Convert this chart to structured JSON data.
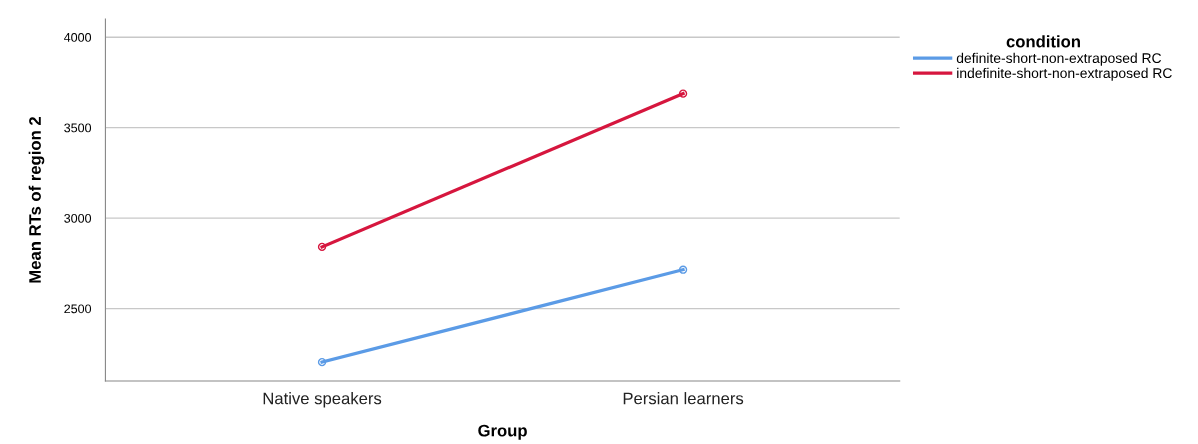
{
  "chart_data": {
    "type": "line",
    "xlabel": "Group",
    "ylabel": "Mean RTs of region 2",
    "legend_title": "condition",
    "categories": [
      "Native speakers",
      "Persian learners"
    ],
    "series": [
      {
        "name": "definite-short-non-extraposed RC",
        "color": "#5b9be6",
        "values": [
          2204,
          2715
        ]
      },
      {
        "name": "indefinite-short-non-extraposed RC",
        "color": "#d6163e",
        "values": [
          2841,
          3688
        ]
      }
    ],
    "ylim": [
      2100,
      4100
    ],
    "yticks": [
      2500,
      3000,
      3500,
      4000
    ],
    "grid": "y",
    "legend": "top right",
    "marker": "circle",
    "line_style": "solid"
  }
}
